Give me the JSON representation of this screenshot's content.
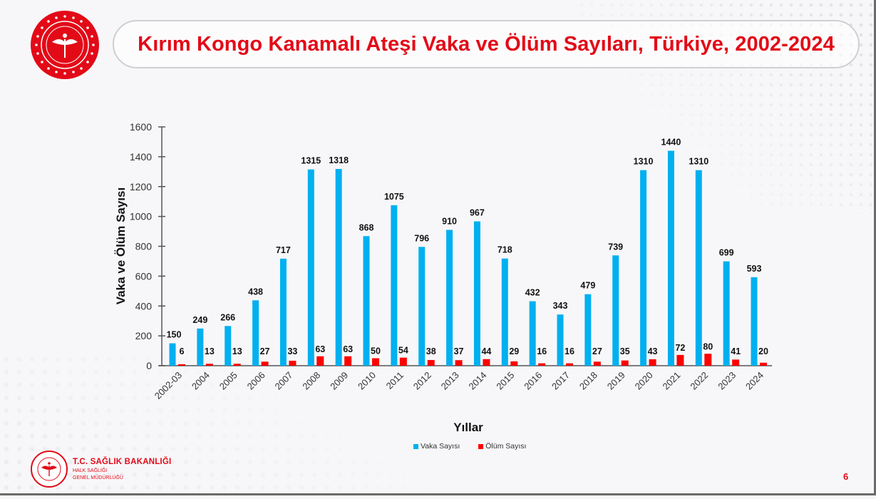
{
  "header": {
    "title": "Kırım Kongo Kanamalı Ateşi Vaka ve Ölüm Sayıları, Türkiye, 2002-2024",
    "logo_icon": "ministry-of-health-seal-icon"
  },
  "footer": {
    "org_title": "T.C. SAĞLIK BAKANLIĞI",
    "org_sub1": "HALK SAĞLIĞI",
    "org_sub2": "GENEL MÜDÜRLÜĞÜ",
    "page_number": "6"
  },
  "colors": {
    "brand_red": "#e30a17",
    "vaka": "#00b0f0",
    "olum": "#ff0000"
  },
  "chart_data": {
    "type": "bar",
    "title": "Kırım Kongo Kanamalı Ateşi Vaka ve Ölüm Sayıları, Türkiye, 2002-2024",
    "xlabel": "Yıllar",
    "ylabel": "Vaka ve Ölüm Sayısı",
    "ylim": [
      0,
      1600
    ],
    "yticks": [
      0,
      200,
      400,
      600,
      800,
      1000,
      1200,
      1400,
      1600
    ],
    "grid": false,
    "legend_position": "bottom",
    "categories": [
      "2002-03",
      "2004",
      "2005",
      "2006",
      "2007",
      "2008",
      "2009",
      "2010",
      "2011",
      "2012",
      "2013",
      "2014",
      "2015",
      "2016",
      "2017",
      "2018",
      "2019",
      "2020",
      "2021",
      "2022",
      "2023",
      "2024"
    ],
    "series": [
      {
        "name": "Vaka Sayısı",
        "color": "#00b0f0",
        "values": [
          150,
          249,
          266,
          438,
          717,
          1315,
          1318,
          868,
          1075,
          796,
          910,
          967,
          718,
          432,
          343,
          479,
          739,
          1310,
          1440,
          1310,
          699,
          593
        ]
      },
      {
        "name": "Ölüm Sayısı",
        "color": "#ff0000",
        "values": [
          6,
          13,
          13,
          27,
          33,
          63,
          63,
          50,
          54,
          38,
          37,
          44,
          29,
          16,
          16,
          27,
          35,
          43,
          72,
          80,
          41,
          20
        ]
      }
    ]
  }
}
